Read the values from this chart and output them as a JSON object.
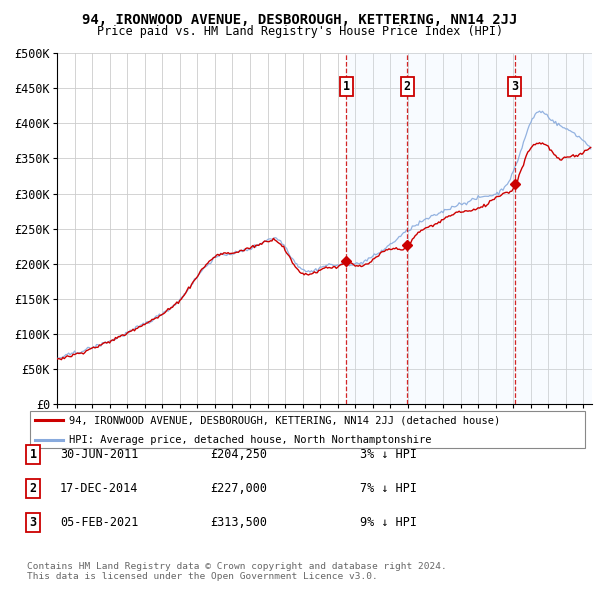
{
  "title": "94, IRONWOOD AVENUE, DESBOROUGH, KETTERING, NN14 2JJ",
  "subtitle": "Price paid vs. HM Land Registry's House Price Index (HPI)",
  "ylim": [
    0,
    500000
  ],
  "yticks": [
    0,
    50000,
    100000,
    150000,
    200000,
    250000,
    300000,
    350000,
    400000,
    450000,
    500000
  ],
  "ytick_labels": [
    "£0",
    "£50K",
    "£100K",
    "£150K",
    "£200K",
    "£250K",
    "£300K",
    "£350K",
    "£400K",
    "£450K",
    "£500K"
  ],
  "xlim_start": 1995.0,
  "xlim_end": 2025.5,
  "sale_dates": [
    2011.496,
    2014.962,
    2021.093
  ],
  "sale_prices": [
    204250,
    227000,
    313500
  ],
  "sale_labels": [
    "1",
    "2",
    "3"
  ],
  "sale_date_strings": [
    "30-JUN-2011",
    "17-DEC-2014",
    "05-FEB-2021"
  ],
  "sale_price_strings": [
    "£204,250",
    "£227,000",
    "£313,500"
  ],
  "sale_hpi_strings": [
    "3% ↓ HPI",
    "7% ↓ HPI",
    "9% ↓ HPI"
  ],
  "line_color_property": "#cc0000",
  "line_color_hpi": "#88aadd",
  "legend_line1": "94, IRONWOOD AVENUE, DESBOROUGH, KETTERING, NN14 2JJ (detached house)",
  "legend_line2": "HPI: Average price, detached house, North Northamptonshire",
  "footnote1": "Contains HM Land Registry data © Crown copyright and database right 2024.",
  "footnote2": "This data is licensed under the Open Government Licence v3.0.",
  "marker_box_color": "#cc0000",
  "vertical_line_color": "#cc0000",
  "shaded_region_color": "#ddeeff",
  "hpi_control_years": [
    1995.0,
    1996.0,
    1997.0,
    1998.0,
    1999.0,
    2000.0,
    2001.0,
    2002.0,
    2003.0,
    2004.0,
    2005.0,
    2006.0,
    2007.0,
    2007.5,
    2008.0,
    2008.5,
    2009.0,
    2009.5,
    2010.0,
    2010.5,
    2011.0,
    2011.5,
    2012.0,
    2012.5,
    2013.0,
    2013.5,
    2014.0,
    2014.5,
    2015.0,
    2015.5,
    2016.0,
    2016.5,
    2017.0,
    2017.5,
    2018.0,
    2018.5,
    2019.0,
    2019.5,
    2020.0,
    2020.5,
    2021.0,
    2021.5,
    2022.0,
    2022.5,
    2023.0,
    2023.5,
    2024.0,
    2024.5,
    2025.0
  ],
  "hpi_control_values": [
    65000,
    72000,
    82000,
    92000,
    105000,
    118000,
    132000,
    152000,
    185000,
    212000,
    218000,
    225000,
    238000,
    240000,
    228000,
    208000,
    195000,
    192000,
    196000,
    200000,
    200000,
    202000,
    202000,
    204000,
    210000,
    218000,
    228000,
    238000,
    248000,
    256000,
    263000,
    268000,
    276000,
    282000,
    287000,
    290000,
    295000,
    298000,
    300000,
    310000,
    330000,
    365000,
    400000,
    415000,
    408000,
    398000,
    392000,
    385000,
    375000
  ],
  "prop_control_years": [
    1995.0,
    1996.0,
    1997.0,
    1998.0,
    1999.0,
    2000.0,
    2001.0,
    2002.0,
    2003.0,
    2004.0,
    2005.0,
    2006.0,
    2007.0,
    2007.5,
    2008.0,
    2008.5,
    2009.0,
    2009.5,
    2010.0,
    2010.5,
    2011.0,
    2011.496,
    2012.0,
    2013.0,
    2014.0,
    2014.962,
    2015.5,
    2016.5,
    2017.5,
    2018.5,
    2019.5,
    2020.5,
    2021.093,
    2021.5,
    2022.0,
    2022.5,
    2023.0,
    2023.5,
    2024.0,
    2024.5,
    2025.0
  ],
  "prop_control_values": [
    64000,
    71000,
    80000,
    91000,
    103000,
    116000,
    130000,
    150000,
    183000,
    210000,
    215000,
    222000,
    234000,
    236000,
    222000,
    200000,
    188000,
    188000,
    193000,
    197000,
    198000,
    204250,
    200000,
    208000,
    224000,
    227000,
    244000,
    258000,
    272000,
    278000,
    288000,
    303000,
    313500,
    340000,
    368000,
    375000,
    370000,
    355000,
    355000,
    358000,
    363000
  ]
}
